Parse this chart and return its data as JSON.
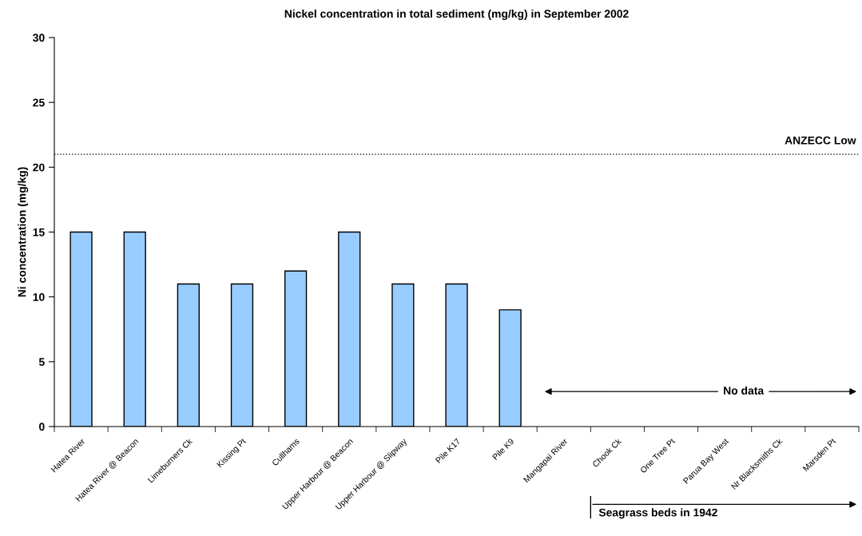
{
  "chart_data": {
    "type": "bar",
    "title": "Nickel concentration in total sediment (mg/kg) in September 2002",
    "ylabel": "Ni concentration (mg/kg)",
    "categories": [
      "Hatea River",
      "Hatea River @ Beacon",
      "Limeburners Ck",
      "Kissing Pt",
      "Cullhams",
      "Upper Harbour @ Beacon",
      "Upper Harbour @ Slipway",
      "Pile K17",
      "Pile K9",
      "Mangapai River",
      "Chook Ck",
      "One Tree Pt",
      "Parua Bay West",
      "Nr Blacksmiths Ck",
      "Marsden Pt"
    ],
    "values": [
      15,
      15,
      11,
      11,
      12,
      15,
      11,
      11,
      9,
      null,
      null,
      null,
      null,
      null,
      null
    ],
    "color": "#99ccff",
    "ylim": [
      0,
      30
    ],
    "yticks": [
      0,
      5,
      10,
      15,
      20,
      25,
      30
    ],
    "grid": false,
    "legend": false,
    "ref_lines": [
      {
        "axis": "y",
        "value": 21,
        "label": "ANZECC Low",
        "color": "#000000",
        "line_style": "dotted"
      }
    ],
    "annotations": [
      "No data",
      "Seagrass beds in 1942"
    ]
  }
}
